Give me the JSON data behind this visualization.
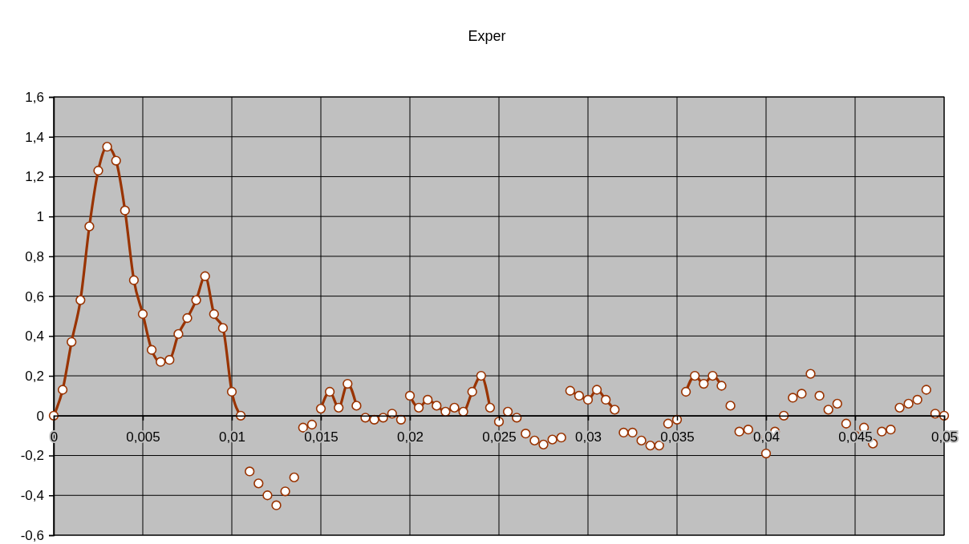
{
  "chart_data": {
    "type": "scatter",
    "title": "Exper",
    "xlim": [
      0,
      0.05
    ],
    "ylim": [
      -0.6,
      1.6
    ],
    "xticks": [
      0,
      {
        "value": 0.005,
        "label": "0,005"
      },
      {
        "value": 0.01,
        "label": "0,01"
      },
      {
        "value": 0.015,
        "label": "0,015"
      },
      {
        "value": 0.02,
        "label": "0,02"
      },
      {
        "value": 0.025,
        "label": "0,025"
      },
      {
        "value": 0.03,
        "label": "0,03"
      },
      {
        "value": 0.035,
        "label": "0,035"
      },
      {
        "value": 0.04,
        "label": "0,04"
      },
      {
        "value": 0.045,
        "label": "0,045"
      },
      {
        "value": 0.05,
        "label": "0,05"
      }
    ],
    "yticks": [
      {
        "value": -0.6,
        "label": "-0,6"
      },
      {
        "value": -0.4,
        "label": "-0,4"
      },
      {
        "value": -0.2,
        "label": "-0,2"
      },
      0,
      {
        "value": 0.2,
        "label": "0,2"
      },
      {
        "value": 0.4,
        "label": "0,4"
      },
      {
        "value": 0.6,
        "label": "0,6"
      },
      {
        "value": 0.8,
        "label": "0,8"
      },
      1,
      {
        "value": 1.2,
        "label": "1,2"
      },
      {
        "value": 1.4,
        "label": "1,4"
      },
      {
        "value": 1.6,
        "label": "1,6"
      }
    ],
    "grid": true,
    "x": [
      0,
      0.0005,
      0.001,
      0.0015,
      0.002,
      0.0025,
      0.003,
      0.0035,
      0.004,
      0.0045,
      0.005,
      0.0055,
      0.006,
      0.0065,
      0.007,
      0.0075,
      0.008,
      0.0085,
      0.009,
      0.0095,
      0.01,
      0.0105,
      0.011,
      0.0115,
      0.012,
      0.0125,
      0.013,
      0.0135,
      0.014,
      0.0145,
      0.015,
      0.0155,
      0.016,
      0.0165,
      0.017,
      0.0175,
      0.018,
      0.0185,
      0.019,
      0.0195,
      0.02,
      0.0205,
      0.021,
      0.0215,
      0.022,
      0.0225,
      0.023,
      0.0235,
      0.024,
      0.0245,
      0.025,
      0.0255,
      0.026,
      0.0265,
      0.027,
      0.0275,
      0.028,
      0.0285,
      0.029,
      0.0295,
      0.03,
      0.0305,
      0.031,
      0.0315,
      0.032,
      0.0325,
      0.033,
      0.0335,
      0.034,
      0.0345,
      0.035,
      0.0355,
      0.036,
      0.0365,
      0.037,
      0.0375,
      0.038,
      0.0385,
      0.039,
      0.0395,
      0.04,
      0.0405,
      0.041,
      0.0415,
      0.042,
      0.0425,
      0.043,
      0.0435,
      0.044,
      0.0445,
      0.045,
      0.0455,
      0.046,
      0.0465,
      0.047,
      0.0475,
      0.048,
      0.0485,
      0.049,
      0.0495,
      0.05
    ],
    "series": [
      {
        "type": "line",
        "marker": "none",
        "color": "#993300",
        "values": [
          0,
          0.13,
          0.37,
          0.58,
          0.95,
          1.23,
          1.35,
          1.28,
          1.03,
          0.68,
          0.51,
          0.33,
          0.27,
          0.28,
          0.41,
          0.49,
          0.58,
          0.7,
          0.51,
          0.44,
          0.12,
          0,
          null,
          null,
          null,
          null,
          null,
          null,
          null,
          null,
          0.035,
          0.12,
          0.04,
          0.16,
          0.05,
          null,
          null,
          null,
          null,
          null,
          0.1,
          0.04,
          0.08,
          0.05,
          0.02,
          0.04,
          0.02,
          0.12,
          0.2,
          0.04,
          null,
          null,
          null,
          null,
          null,
          null,
          null,
          null,
          0.125,
          0.1,
          0.08,
          0.13,
          0.08,
          0.03,
          null,
          null,
          null,
          null,
          null,
          null,
          null,
          0.12,
          0.2,
          0.16,
          0.2,
          0.15,
          null,
          null,
          null,
          null,
          null,
          null,
          null,
          null,
          null,
          null,
          null,
          null,
          null,
          null,
          null,
          null,
          null,
          null,
          null,
          null,
          null,
          null,
          null,
          null,
          null
        ]
      },
      {
        "type": "scatter",
        "marker": "circle",
        "color": "#993300",
        "values": [
          0,
          0.13,
          0.37,
          0.58,
          0.95,
          1.23,
          1.35,
          1.28,
          1.03,
          0.68,
          0.51,
          0.33,
          0.27,
          0.28,
          0.41,
          0.49,
          0.58,
          0.7,
          0.51,
          0.44,
          0.12,
          0,
          -0.28,
          -0.34,
          -0.4,
          -0.45,
          -0.38,
          -0.31,
          -0.06,
          -0.045,
          0.035,
          0.12,
          0.04,
          0.16,
          0.05,
          -0.01,
          -0.02,
          -0.01,
          0.01,
          -0.02,
          0.1,
          0.04,
          0.08,
          0.05,
          0.02,
          0.04,
          0.02,
          0.12,
          0.2,
          0.04,
          -0.03,
          0.02,
          -0.01,
          -0.09,
          -0.125,
          -0.145,
          -0.12,
          -0.11,
          0.125,
          0.1,
          0.08,
          0.13,
          0.08,
          0.03,
          -0.085,
          -0.085,
          -0.125,
          -0.15,
          -0.15,
          -0.04,
          -0.02,
          0.12,
          0.2,
          0.16,
          0.2,
          0.15,
          0.05,
          -0.08,
          -0.07,
          -0.11,
          -0.19,
          -0.08,
          0,
          0.09,
          0.11,
          0.21,
          0.1,
          0.03,
          0.06,
          -0.04,
          -0.1,
          -0.06,
          -0.14,
          -0.08,
          -0.07,
          0.04,
          0.06,
          0.08,
          0.13,
          0.01,
          0
        ]
      }
    ]
  }
}
